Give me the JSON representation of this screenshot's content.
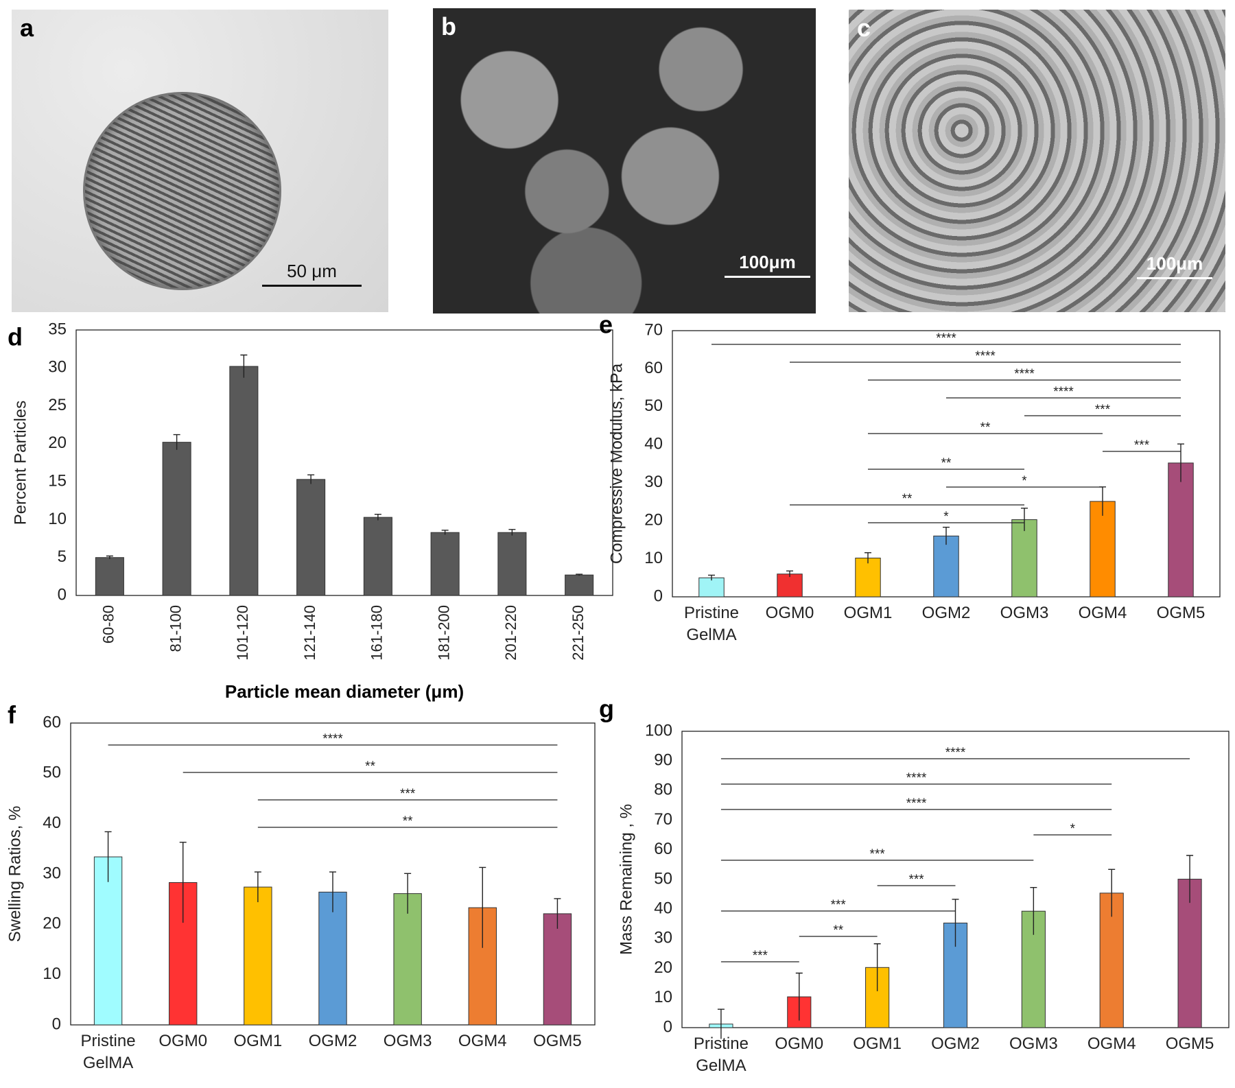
{
  "images": [
    {
      "label": "a",
      "scale_bar": "50 μm"
    },
    {
      "label": "b",
      "scale_bar": "100μm"
    },
    {
      "label": "c",
      "scale_bar": "100μm"
    }
  ],
  "chart_data": [
    {
      "type": "bar",
      "panel": "d",
      "x_label": "Particle mean diameter (μm)",
      "y_label": "Percent Particles",
      "categories": [
        "60-80",
        "81-100",
        "101-120",
        "121-140",
        "161-180",
        "181-200",
        "201-220",
        "221-250"
      ],
      "values": [
        5,
        20.2,
        30.2,
        15.3,
        10.3,
        8.3,
        8.3,
        2.7
      ],
      "errors": [
        0.2,
        1,
        1.5,
        0.6,
        0.4,
        0.3,
        0.4,
        0.1
      ],
      "color": "#595959",
      "ylim": [
        0,
        35
      ],
      "yticks": [
        0,
        5,
        10,
        15,
        20,
        25,
        30,
        35
      ]
    },
    {
      "type": "bar",
      "panel": "e",
      "y_label": "Compressive Modulus, kPa",
      "categories": [
        "Pristine GelMA",
        "OGM0",
        "OGM1",
        "OGM2",
        "OGM3",
        "OGM4",
        "OGM5"
      ],
      "values": [
        5,
        6,
        10.2,
        16,
        20.3,
        25.1,
        35.2
      ],
      "errors": [
        0.7,
        0.8,
        1.4,
        2.3,
        3,
        3.8,
        5
      ],
      "colors": [
        "#a0f4f6",
        "#f03030",
        "#ffc000",
        "#5b9bd5",
        "#8fc16d",
        "#ff8c00",
        "#a64d79"
      ],
      "ylim": [
        0,
        70
      ],
      "yticks": [
        0,
        10,
        20,
        30,
        40,
        50,
        60,
        70
      ],
      "annotations": [
        {
          "text": "****",
          "from": 0,
          "to": 6
        },
        {
          "text": "****",
          "from": 1,
          "to": 6
        },
        {
          "text": "****",
          "from": 2,
          "to": 6
        },
        {
          "text": "****",
          "from": 3,
          "to": 6
        },
        {
          "text": "***",
          "from": 4,
          "to": 6
        },
        {
          "text": "**",
          "from": 2,
          "to": 5
        },
        {
          "text": "***",
          "from": 5,
          "to": 6
        },
        {
          "text": "**",
          "from": 2,
          "to": 4
        },
        {
          "text": "*",
          "from": 3,
          "to": 5
        },
        {
          "text": "**",
          "from": 1,
          "to": 4
        },
        {
          "text": "*",
          "from": 2,
          "to": 4
        }
      ]
    },
    {
      "type": "bar",
      "panel": "f",
      "y_label": "Swelling Ratios, %",
      "categories": [
        "Pristine GelMA",
        "OGM0",
        "OGM1",
        "OGM2",
        "OGM3",
        "OGM4",
        "OGM5"
      ],
      "values": [
        33.4,
        28.3,
        27.4,
        26.4,
        26.1,
        23.3,
        22.1
      ],
      "errors": [
        5,
        8,
        3,
        4,
        4,
        8,
        3
      ],
      "colors": [
        "#a0fcff",
        "#ff3333",
        "#ffc000",
        "#5b9bd5",
        "#8fc16d",
        "#ed7d31",
        "#a64d79"
      ],
      "ylim": [
        0,
        60
      ],
      "yticks": [
        0,
        10,
        20,
        30,
        40,
        50,
        60
      ],
      "annotations": [
        {
          "text": "****",
          "from": 0,
          "to": 6
        },
        {
          "text": "**",
          "from": 1,
          "to": 6
        },
        {
          "text": "***",
          "from": 2,
          "to": 6
        },
        {
          "text": "**",
          "from": 2,
          "to": 6
        }
      ]
    },
    {
      "type": "bar",
      "panel": "g",
      "y_label": "Mass Remaining , %",
      "categories": [
        "Pristine GelMA",
        "OGM0",
        "OGM1",
        "OGM2",
        "OGM3",
        "OGM4",
        "OGM5"
      ],
      "values": [
        1.2,
        10.4,
        20.3,
        35.3,
        39.3,
        45.4,
        50.1
      ],
      "errors": [
        5,
        8,
        8,
        8,
        8,
        8,
        8
      ],
      "colors": [
        "#a0fcff",
        "#ff3333",
        "#ffc000",
        "#5b9bd5",
        "#8fc16d",
        "#ed7d31",
        "#a64d79"
      ],
      "ylim": [
        0,
        100
      ],
      "yticks": [
        0,
        10,
        20,
        30,
        40,
        50,
        60,
        70,
        80,
        90,
        100
      ],
      "annotations": [
        {
          "text": "****",
          "from": 0,
          "to": 6
        },
        {
          "text": "****",
          "from": 0,
          "to": 5
        },
        {
          "text": "****",
          "from": 0,
          "to": 5
        },
        {
          "text": "*",
          "from": 4,
          "to": 5
        },
        {
          "text": "***",
          "from": 0,
          "to": 4
        },
        {
          "text": "***",
          "from": 2,
          "to": 3
        },
        {
          "text": "***",
          "from": 0,
          "to": 3
        },
        {
          "text": "**",
          "from": 1,
          "to": 2
        },
        {
          "text": "***",
          "from": 0,
          "to": 1
        }
      ]
    }
  ]
}
